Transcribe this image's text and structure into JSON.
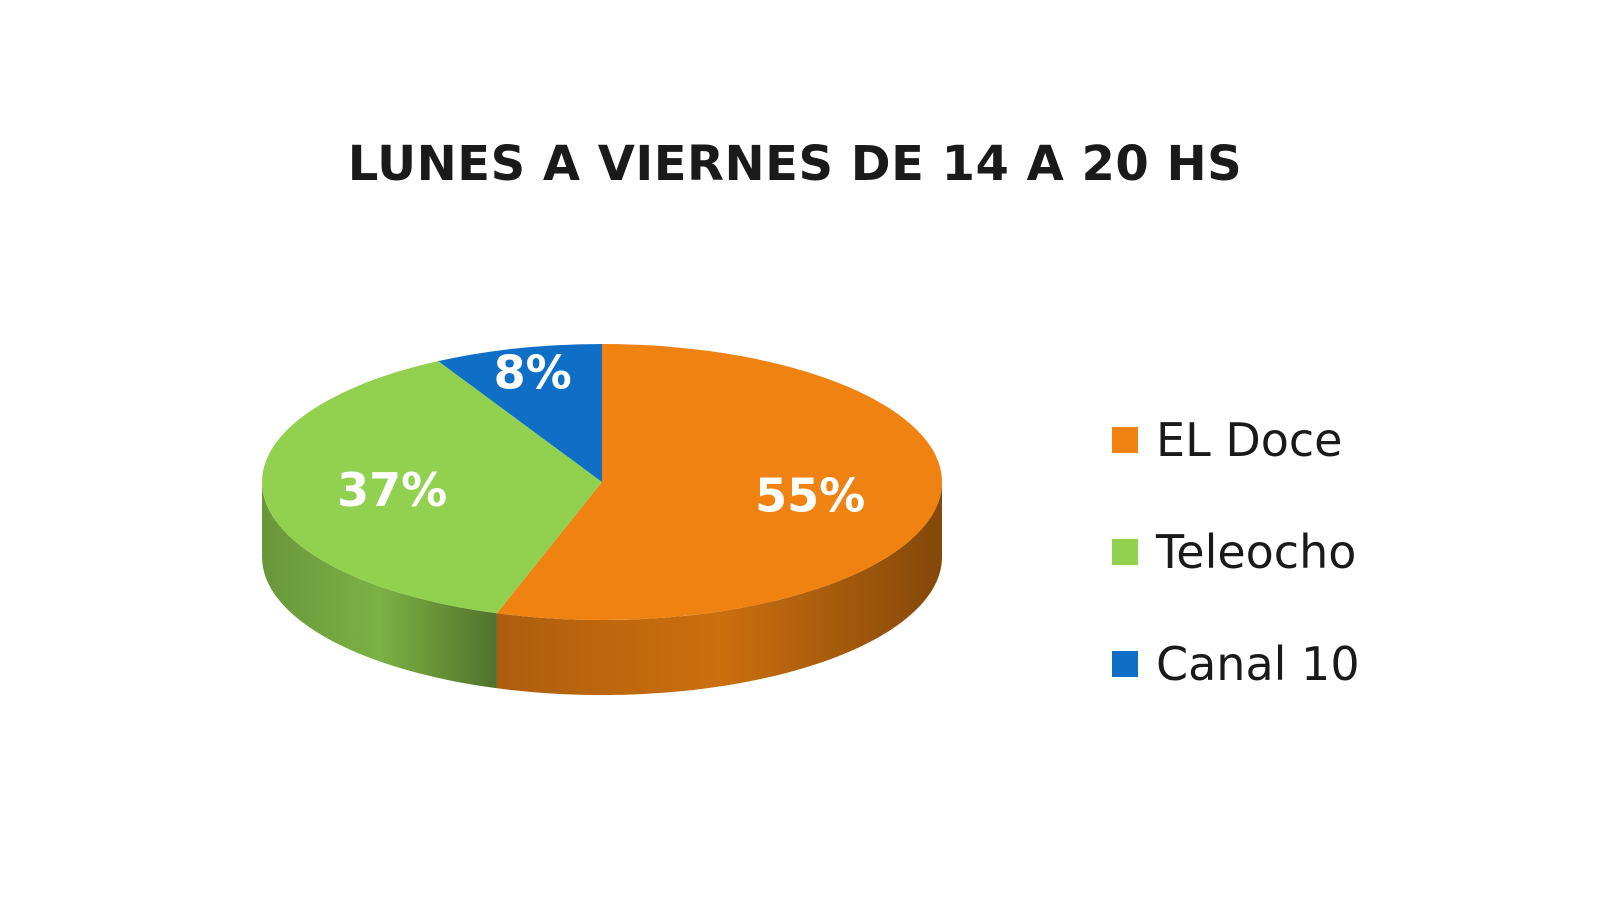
{
  "chart_data": {
    "type": "pie",
    "title": "LUNES A VIERNES DE 14 A 20 HS",
    "slices": [
      {
        "name": "EL Doce",
        "value": 55,
        "label": "55%",
        "color": "#F08212"
      },
      {
        "name": "Teleocho",
        "value": 37,
        "label": "37%",
        "color": "#92D050"
      },
      {
        "name": "Canal 10",
        "value": 8,
        "label": "8%",
        "color": "#0F6FC6"
      }
    ],
    "legend_position": "right",
    "style": "3d"
  }
}
